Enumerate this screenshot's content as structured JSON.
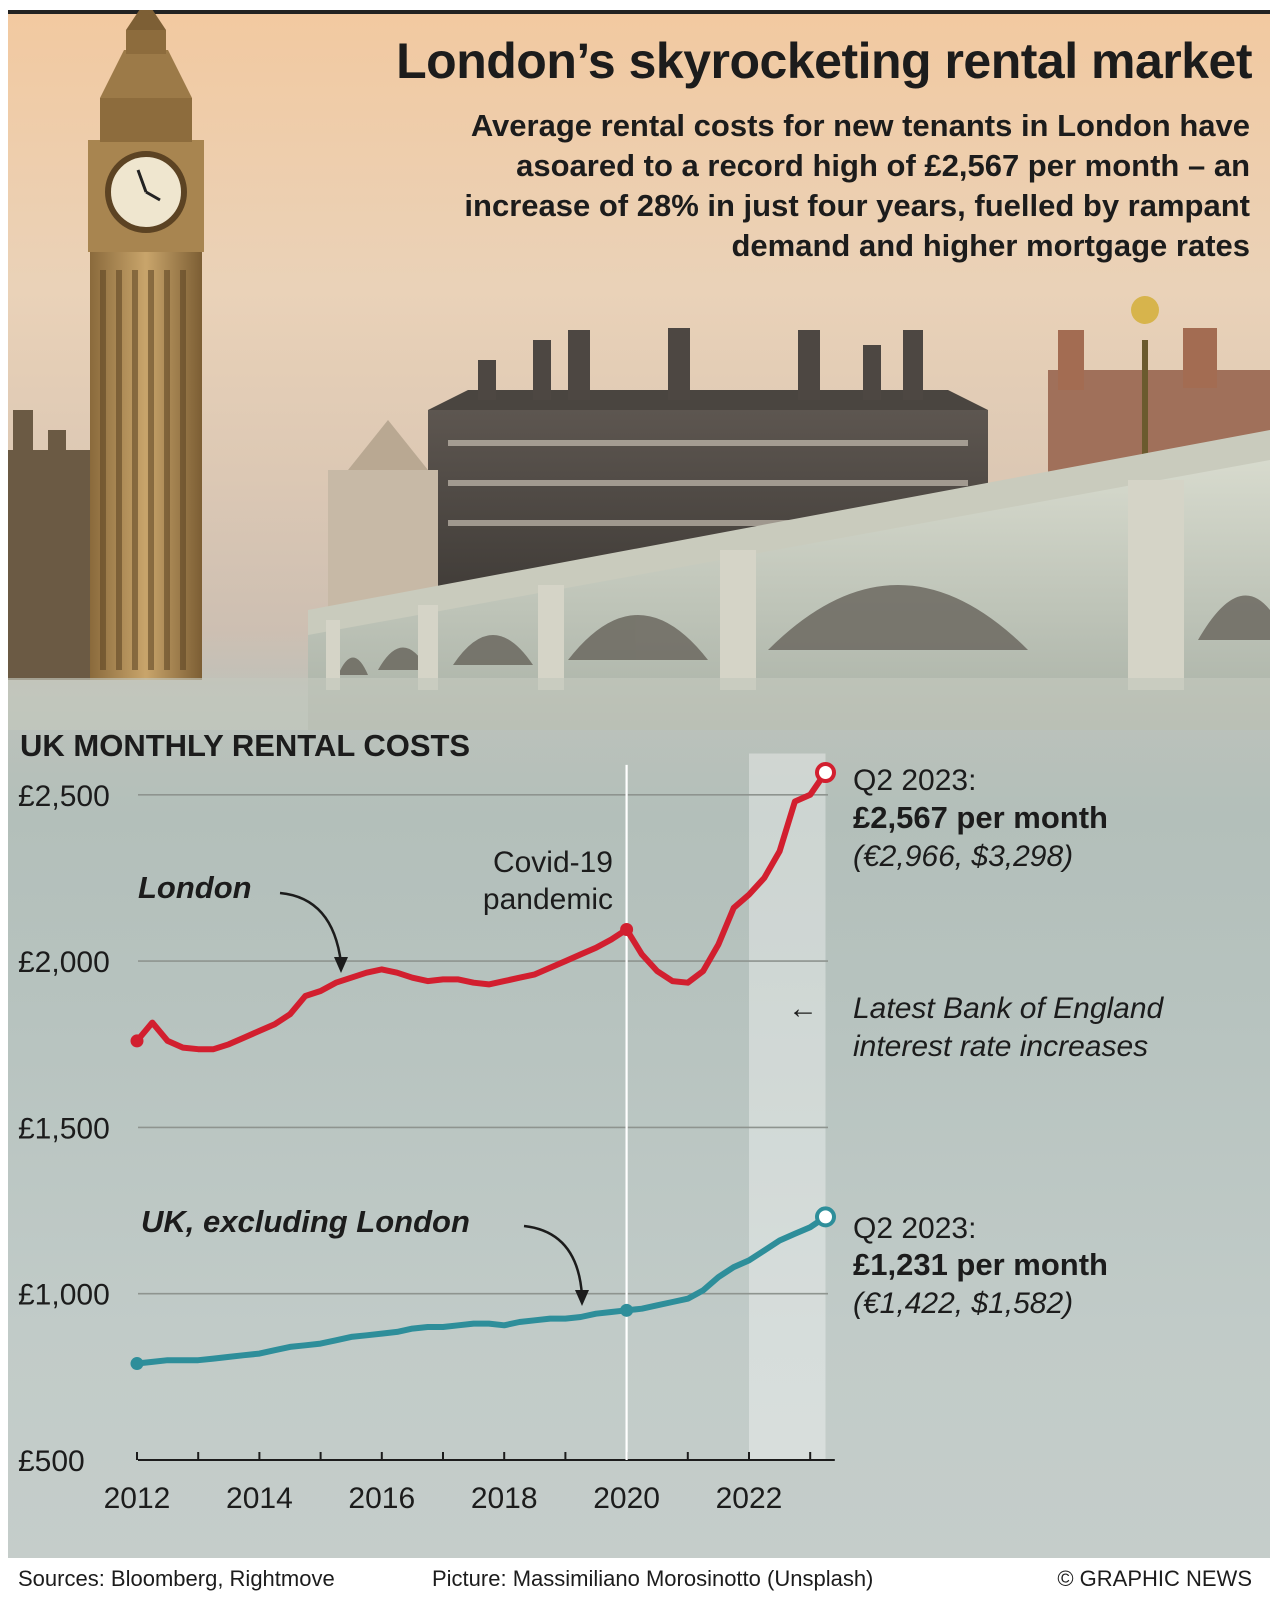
{
  "header": {
    "title": "London’s skyrocketing rental market",
    "subtitle": "Average rental costs for new tenants in London have asoared to a record high of £2,567 per month – an increase of 28% in just four years, fuelled by rampant demand and higher mortgage rates"
  },
  "chart_heading": "UK MONTHLY RENTAL COSTS",
  "chart_data": {
    "type": "line",
    "title": "UK MONTHLY RENTAL COSTS",
    "xlabel": "",
    "ylabel": "",
    "ylim": [
      500,
      2600
    ],
    "xlim": [
      2012,
      2023.5
    ],
    "y_ticks": [
      "£2,500",
      "£2,000",
      "£1,500",
      "£1,000",
      "£500"
    ],
    "y_tick_values": [
      2500,
      2000,
      1500,
      1000,
      500
    ],
    "x_ticks": [
      "2012",
      "2014",
      "2016",
      "2018",
      "2020",
      "2022"
    ],
    "x_tick_values": [
      2012,
      2014,
      2016,
      2018,
      2020,
      2022
    ],
    "grid": "horizontal",
    "series": [
      {
        "name": "London",
        "color": "#d21f2f",
        "x": [
          2012.0,
          2012.25,
          2012.5,
          2012.75,
          2013.0,
          2013.25,
          2013.5,
          2013.75,
          2014.0,
          2014.25,
          2014.5,
          2014.75,
          2015.0,
          2015.25,
          2015.5,
          2015.75,
          2016.0,
          2016.25,
          2016.5,
          2016.75,
          2017.0,
          2017.25,
          2017.5,
          2017.75,
          2018.0,
          2018.25,
          2018.5,
          2018.75,
          2019.0,
          2019.25,
          2019.5,
          2019.75,
          2020.0,
          2020.25,
          2020.5,
          2020.75,
          2021.0,
          2021.25,
          2021.5,
          2021.75,
          2022.0,
          2022.25,
          2022.5,
          2022.75,
          2023.0,
          2023.25
        ],
        "values": [
          1760,
          1815,
          1760,
          1740,
          1735,
          1735,
          1750,
          1770,
          1790,
          1810,
          1840,
          1895,
          1910,
          1935,
          1950,
          1965,
          1975,
          1965,
          1950,
          1940,
          1945,
          1945,
          1935,
          1930,
          1940,
          1950,
          1960,
          1980,
          2000,
          2020,
          2040,
          2065,
          2095,
          2020,
          1970,
          1940,
          1935,
          1970,
          2050,
          2160,
          2200,
          2250,
          2330,
          2480,
          2500,
          2567
        ]
      },
      {
        "name": "UK, excluding London",
        "color": "#2e8e9a",
        "x": [
          2012.0,
          2012.25,
          2012.5,
          2012.75,
          2013.0,
          2013.25,
          2013.5,
          2013.75,
          2014.0,
          2014.25,
          2014.5,
          2014.75,
          2015.0,
          2015.25,
          2015.5,
          2015.75,
          2016.0,
          2016.25,
          2016.5,
          2016.75,
          2017.0,
          2017.25,
          2017.5,
          2017.75,
          2018.0,
          2018.25,
          2018.5,
          2018.75,
          2019.0,
          2019.25,
          2019.5,
          2019.75,
          2020.0,
          2020.25,
          2020.5,
          2020.75,
          2021.0,
          2021.25,
          2021.5,
          2021.75,
          2022.0,
          2022.25,
          2022.5,
          2022.75,
          2023.0,
          2023.25
        ],
        "values": [
          790,
          795,
          800,
          800,
          800,
          805,
          810,
          815,
          820,
          830,
          840,
          845,
          850,
          860,
          870,
          875,
          880,
          885,
          895,
          900,
          900,
          905,
          910,
          910,
          905,
          915,
          920,
          925,
          925,
          930,
          940,
          945,
          950,
          955,
          965,
          975,
          985,
          1010,
          1050,
          1080,
          1100,
          1130,
          1160,
          1180,
          1200,
          1231
        ]
      }
    ],
    "covid_line": {
      "x": 2020.0
    },
    "shaded_period": {
      "x_start": 2022.0,
      "x_end": 2023.25
    },
    "annotations": {
      "london_label": "London",
      "uk_label": "UK, excluding London",
      "covid_line1": "Covid-19",
      "covid_line2": "pandemic",
      "boe_arrow": "←",
      "boe_line1": "Latest Bank of England",
      "boe_line2": "interest rate increases",
      "london_end_1": "Q2 2023:",
      "london_end_2": "£2,567 per month",
      "london_end_3": "(€2,966, $3,298)",
      "uk_end_1": "Q2 2023:",
      "uk_end_2": "£1,231 per month",
      "uk_end_3": "(€1,422, $1,582)"
    }
  },
  "footer": {
    "sources": "Sources: Bloomberg, Rightmove",
    "picture": "Picture: Massimiliano Morosinotto (Unsplash)",
    "copyright": "© GRAPHIC NEWS"
  },
  "colors": {
    "london": "#d21f2f",
    "uk": "#2e8e9a",
    "text": "#1c1c1c"
  }
}
